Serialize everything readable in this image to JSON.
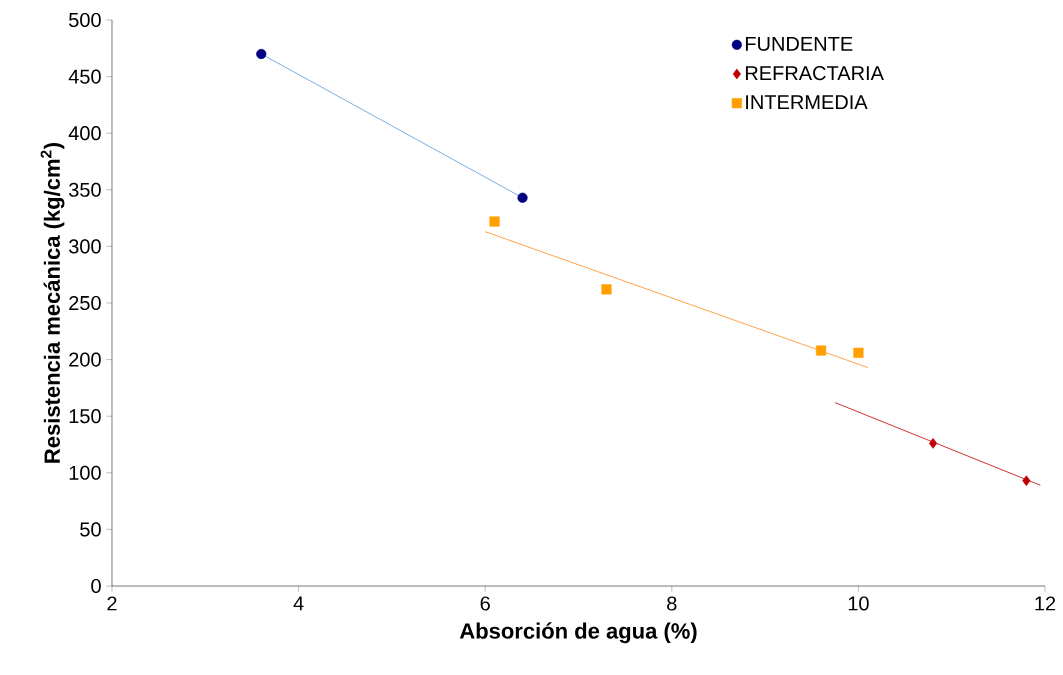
{
  "chart_data": {
    "type": "scatter",
    "xlabel": "Absorción de agua (%)",
    "ylabel": "Resistencia mecánica (kg/cm$^{2}$)",
    "xlim": [
      2,
      12
    ],
    "ylim": [
      0,
      500
    ],
    "xticks": [
      2,
      4,
      6,
      8,
      10,
      12
    ],
    "yticks": [
      0,
      50,
      100,
      150,
      200,
      250,
      300,
      350,
      400,
      450,
      500
    ],
    "grid": false,
    "legend": "top right",
    "series": [
      {
        "name": "FUNDENTE",
        "color": "#000080",
        "marker": "circle",
        "x": [
          3.6,
          6.4
        ],
        "values": [
          470,
          343
        ]
      },
      {
        "name": "REFRACTARIA",
        "color": "#c00000",
        "marker": "diamond",
        "x": [
          10.8,
          11.8
        ],
        "values": [
          126,
          93
        ]
      },
      {
        "name": "INTERMEDIA",
        "color": "#ffa000",
        "marker": "square",
        "x": [
          6.1,
          7.3,
          9.6,
          10.0
        ],
        "values": [
          322,
          262,
          208,
          206
        ]
      },
      {
        "type": "line",
        "color": "#5b9bd5",
        "marker": "none",
        "line_style": "solid",
        "x": [
          3.6,
          6.4
        ],
        "values": [
          470,
          343
        ]
      },
      {
        "type": "line",
        "color": "#c00000",
        "marker": "none",
        "line_style": "solid",
        "x": [
          9.75,
          11.95
        ],
        "values": [
          162,
          89
        ]
      },
      {
        "type": "line",
        "color": "#ff8c1a",
        "marker": "none",
        "line_style": "solid",
        "x": [
          6.0,
          10.1
        ],
        "values": [
          313,
          193
        ]
      }
    ]
  }
}
